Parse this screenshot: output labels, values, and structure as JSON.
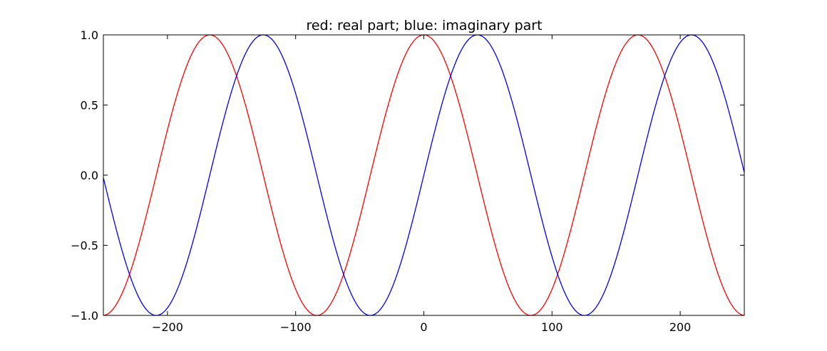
{
  "chart_data": {
    "type": "line",
    "title": "red: real part; blue: imaginary part",
    "xlabel": "",
    "ylabel": "",
    "xlim": [
      -250,
      250
    ],
    "ylim": [
      -1.0,
      1.0
    ],
    "x_ticks": [
      -200,
      -100,
      0,
      100,
      200
    ],
    "x_tick_labels": [
      "−200",
      "−100",
      "0",
      "100",
      "200"
    ],
    "y_ticks": [
      -1.0,
      -0.5,
      0.0,
      0.5,
      1.0
    ],
    "y_tick_labels": [
      "−1.0",
      "−0.5",
      "0.0",
      "0.5",
      "1.0"
    ],
    "grid": false,
    "legend": "none",
    "series": [
      {
        "color": "#ff0000",
        "function": "cos",
        "period": 167,
        "x_range": [
          -250,
          250
        ]
      },
      {
        "color": "#0000ff",
        "function": "sin",
        "period": 167,
        "x_range": [
          -250,
          250
        ]
      }
    ]
  }
}
